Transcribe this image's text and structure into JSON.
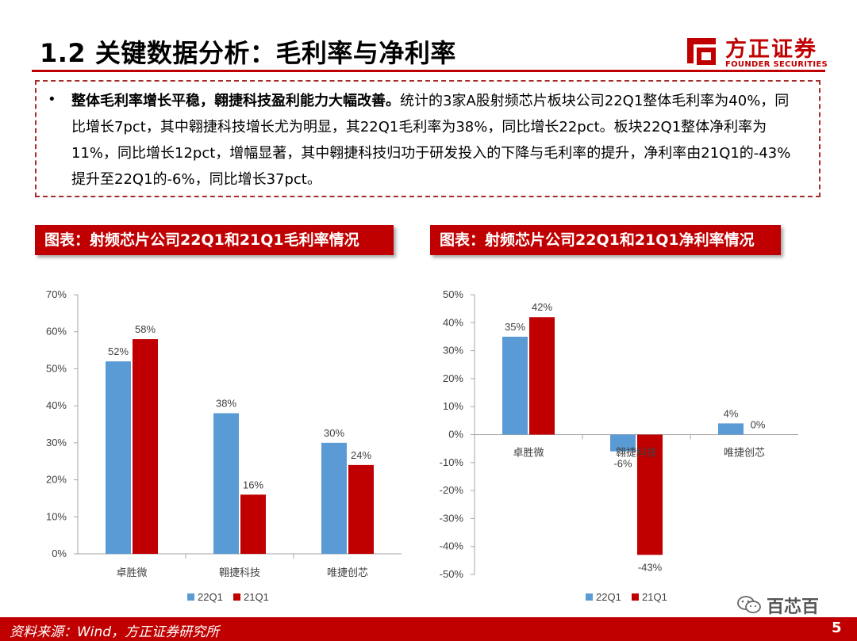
{
  "header": {
    "title": "1.2 关键数据分析：毛利率与净利率",
    "logo_cn": "方正证券",
    "logo_en": "FOUNDER SECURITIES"
  },
  "summary": {
    "bullet": "•",
    "lead": "整体毛利率增长平稳，翱捷科技盈利能力大幅改善。",
    "body": "统计的3家A股射频芯片板块公司22Q1整体毛利率为40%，同比增长7pct，其中翱捷科技增长尤为明显，其22Q1毛利率为38%，同比增长22pct。板块22Q1整体净利率为11%，同比增长12pct，增幅显著，其中翱捷科技归功于研发投入的下降与毛利率的提升，净利率由21Q1的-43%提升至22Q1的-6%，同比增长37pct。"
  },
  "colors": {
    "accent": "#c00000",
    "series_22q1": "#5b9bd5",
    "series_21q1": "#c00000"
  },
  "chart_data": [
    {
      "type": "bar",
      "title": "图表：射频芯片公司22Q1和21Q1毛利率情况",
      "categories": [
        "卓胜微",
        "翱捷科技",
        "唯捷创芯"
      ],
      "series": [
        {
          "name": "22Q1",
          "values": [
            52,
            38,
            30
          ],
          "labels": [
            "52%",
            "38%",
            "30%"
          ]
        },
        {
          "name": "21Q1",
          "values": [
            58,
            16,
            24
          ],
          "labels": [
            "58%",
            "16%",
            "24%"
          ]
        }
      ],
      "ylim": [
        0,
        70
      ],
      "yticks": [
        0,
        10,
        20,
        30,
        40,
        50,
        60,
        70
      ],
      "ytick_labels": [
        "0%",
        "10%",
        "20%",
        "30%",
        "40%",
        "50%",
        "60%",
        "70%"
      ],
      "legend": "bottom",
      "grid": false
    },
    {
      "type": "bar",
      "title": "图表：射频芯片公司22Q1和21Q1净利率情况",
      "categories": [
        "卓胜微",
        "翱捷科技",
        "唯捷创芯"
      ],
      "series": [
        {
          "name": "22Q1",
          "values": [
            35,
            -6,
            4
          ],
          "labels": [
            "35%",
            "-6%",
            "4%"
          ]
        },
        {
          "name": "21Q1",
          "values": [
            42,
            -43,
            0
          ],
          "labels": [
            "42%",
            "-43%",
            "0%"
          ]
        }
      ],
      "ylim": [
        -50,
        50
      ],
      "yticks": [
        -50,
        -40,
        -30,
        -20,
        -10,
        0,
        10,
        20,
        30,
        40,
        50
      ],
      "ytick_labels": [
        "-50%",
        "-40%",
        "-30%",
        "-20%",
        "-10%",
        "0%",
        "10%",
        "20%",
        "30%",
        "40%",
        "50%"
      ],
      "legend": "bottom",
      "grid": false
    }
  ],
  "footer": {
    "source": "资料来源：Wind，方正证券研究所",
    "page_number": "5",
    "watermark": "百芯百"
  }
}
